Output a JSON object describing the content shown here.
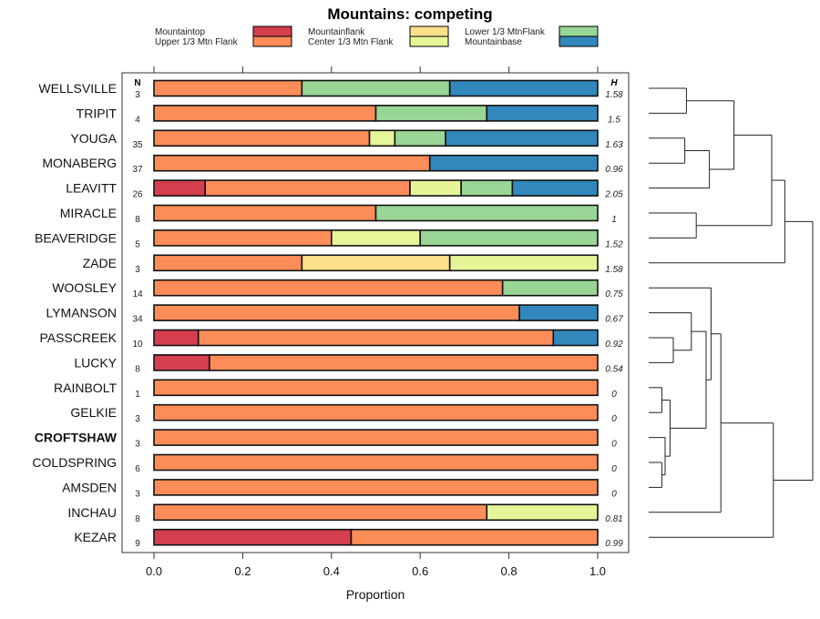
{
  "chart_data": {
    "type": "bar",
    "subtype": "stacked-horizontal-proportion-with-dendrogram",
    "title": "Mountains: competing",
    "xlabel": "Proportion",
    "ylabel": "",
    "xlim": [
      0,
      1
    ],
    "x_ticks": [
      "0.0",
      "0.2",
      "0.4",
      "0.6",
      "0.8",
      "1.0"
    ],
    "x_tick_values": [
      0,
      0.2,
      0.4,
      0.6,
      0.8,
      1.0
    ],
    "legend_position": "top",
    "n_header": "N",
    "h_header": "H",
    "series": [
      {
        "name": "Mountaintop",
        "color": "#d53e4f"
      },
      {
        "name": "Upper 1/3 Mtn Flank",
        "color": "#fc8d59"
      },
      {
        "name": "Mountainflank",
        "color": "#fee08b"
      },
      {
        "name": "Center 1/3 Mtn Flank",
        "color": "#e6f598"
      },
      {
        "name": "Lower 1/3 MtnFlank",
        "color": "#99d594"
      },
      {
        "name": "Mountainbase",
        "color": "#3288bd"
      }
    ],
    "legend_order": [
      "Mountaintop",
      "Upper 1/3 Mtn Flank",
      "Mountainflank",
      "Center 1/3 Mtn Flank",
      "Lower 1/3 MtnFlank",
      "Mountainbase"
    ],
    "rows": [
      {
        "label": "WELLSVILLE",
        "n": "3",
        "h": "1.58",
        "bold": false,
        "counts": [
          0,
          1,
          0,
          0,
          1,
          1
        ]
      },
      {
        "label": "TRIPIT",
        "n": "4",
        "h": "1.5",
        "bold": false,
        "counts": [
          0,
          2,
          0,
          0,
          1,
          1
        ]
      },
      {
        "label": "YOUGA",
        "n": "35",
        "h": "1.63",
        "bold": false,
        "counts": [
          0,
          17,
          0,
          2,
          4,
          12
        ]
      },
      {
        "label": "MONABERG",
        "n": "37",
        "h": "0.96",
        "bold": false,
        "counts": [
          0,
          23,
          0,
          0,
          0,
          14
        ]
      },
      {
        "label": "LEAVITT",
        "n": "26",
        "h": "2.05",
        "bold": false,
        "counts": [
          3,
          12,
          0,
          3,
          3,
          5
        ]
      },
      {
        "label": "MIRACLE",
        "n": "8",
        "h": "1",
        "bold": false,
        "counts": [
          0,
          4,
          0,
          0,
          4,
          0
        ]
      },
      {
        "label": "BEAVERIDGE",
        "n": "5",
        "h": "1.52",
        "bold": false,
        "counts": [
          0,
          2,
          0,
          1,
          2,
          0
        ]
      },
      {
        "label": "ZADE",
        "n": "3",
        "h": "1.58",
        "bold": false,
        "counts": [
          0,
          1,
          1,
          1,
          0,
          0
        ]
      },
      {
        "label": "WOOSLEY",
        "n": "14",
        "h": "0.75",
        "bold": false,
        "counts": [
          0,
          11,
          0,
          0,
          3,
          0
        ]
      },
      {
        "label": "LYMANSON",
        "n": "34",
        "h": "0.67",
        "bold": false,
        "counts": [
          0,
          28,
          0,
          0,
          0,
          6
        ]
      },
      {
        "label": "PASSCREEK",
        "n": "10",
        "h": "0.92",
        "bold": false,
        "counts": [
          1,
          8,
          0,
          0,
          0,
          1
        ]
      },
      {
        "label": "LUCKY",
        "n": "8",
        "h": "0.54",
        "bold": false,
        "counts": [
          1,
          7,
          0,
          0,
          0,
          0
        ]
      },
      {
        "label": "RAINBOLT",
        "n": "1",
        "h": "0",
        "bold": false,
        "counts": [
          0,
          1,
          0,
          0,
          0,
          0
        ]
      },
      {
        "label": "GELKIE",
        "n": "3",
        "h": "0",
        "bold": false,
        "counts": [
          0,
          3,
          0,
          0,
          0,
          0
        ]
      },
      {
        "label": "CROFTSHAW",
        "n": "3",
        "h": "0",
        "bold": true,
        "counts": [
          0,
          3,
          0,
          0,
          0,
          0
        ]
      },
      {
        "label": "COLDSPRING",
        "n": "6",
        "h": "0",
        "bold": false,
        "counts": [
          0,
          6,
          0,
          0,
          0,
          0
        ]
      },
      {
        "label": "AMSDEN",
        "n": "3",
        "h": "0",
        "bold": false,
        "counts": [
          0,
          3,
          0,
          0,
          0,
          0
        ]
      },
      {
        "label": "INCHAU",
        "n": "8",
        "h": "0.81",
        "bold": false,
        "counts": [
          0,
          6,
          0,
          2,
          0,
          0
        ]
      },
      {
        "label": "KEZAR",
        "n": "9",
        "h": "0.99",
        "bold": false,
        "counts": [
          4,
          5,
          0,
          0,
          0,
          0
        ]
      }
    ],
    "dendrogram": {
      "description": "Hierarchical clustering of rows; merges listed as [left, right, height] where height is relative distance (0 = leaves, 1 = root)",
      "merges": [
        [
          "WELLSVILLE",
          "TRIPIT",
          0.23
        ],
        [
          "YOUGA",
          "MONABERG",
          0.22
        ],
        [
          "YOUGA+MONABERG",
          "LEAVITT",
          0.37
        ],
        [
          "WELLSVILLE+TRIPIT",
          "YOUGA+MONABERG+LEAVITT",
          0.52
        ],
        [
          "MIRACLE",
          "BEAVERIDGE",
          0.29
        ],
        [
          "CLUSTER_A",
          "MIRACLE+BEAVERIDGE",
          0.75
        ],
        [
          "CLUSTER_B",
          "ZADE",
          0.83
        ],
        [
          "PASSCREEK",
          "LUCKY",
          0.15
        ],
        [
          "LYMANSON",
          "PASSCREEK+LUCKY",
          0.26
        ],
        [
          "RAINBOLT",
          "GELKIE",
          0.08
        ],
        [
          "COLDSPRING",
          "AMSDEN",
          0.08
        ],
        [
          "CROFTSHAW",
          "COLDSPRING+AMSDEN",
          0.1
        ],
        [
          "RAINBOLT+GELKIE",
          "CROFTSHAW+COLDSPRING+AMSDEN",
          0.13
        ],
        [
          "LYMANSON+PASSCREEK+LUCKY",
          "RAINBOLT..AMSDEN",
          0.35
        ],
        [
          "CLUSTER_C",
          "WOOSLEY",
          0.38
        ],
        [
          "CLUSTER_D",
          "INCHAU",
          0.44
        ],
        [
          "CLUSTER_E",
          "KEZAR",
          0.76
        ],
        [
          "TOP",
          "BOTTOM",
          1.0
        ]
      ]
    }
  }
}
